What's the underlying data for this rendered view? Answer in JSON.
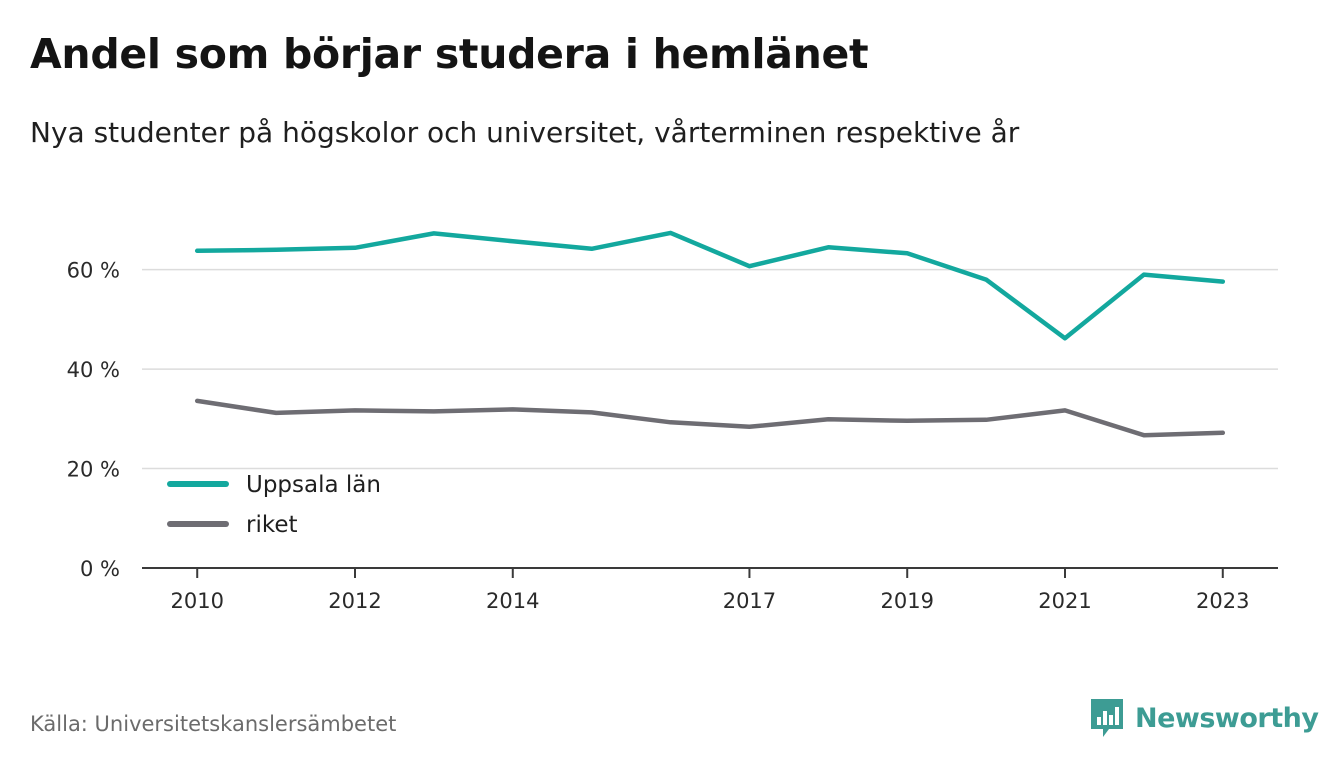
{
  "title": "Andel som börjar studera i hemlänet",
  "subtitle": "Nya studenter på högskolor och universitet, vårterminen respektive år",
  "source": "Källa: Universitetskanslersämbetet",
  "brand": {
    "name": "Newsworthy",
    "icon": "newsworthy-logo-icon",
    "color": "#3d9c94"
  },
  "chart_data": {
    "type": "line",
    "title": "Andel som börjar studera i hemlänet",
    "subtitle": "Nya studenter på högskolor och universitet, vårterminen respektive år",
    "x": [
      2010,
      2011,
      2012,
      2013,
      2014,
      2015,
      2016,
      2017,
      2018,
      2019,
      2020,
      2021,
      2022,
      2023
    ],
    "x_tick_labels": [
      "2010",
      "2012",
      "2014",
      "2017",
      "2019",
      "2021",
      "2023"
    ],
    "y_tick_labels": [
      "0 %",
      "20 %",
      "40 %",
      "60 %"
    ],
    "y_ticks": [
      0,
      20,
      40,
      60
    ],
    "ylim": [
      0,
      72
    ],
    "xlim": [
      2009.3,
      2023.7
    ],
    "grid": true,
    "legend_position": "bottom-left",
    "series": [
      {
        "name": "Uppsala län",
        "color": "#13a89e",
        "values": [
          63.8,
          64.0,
          64.4,
          67.3,
          65.7,
          64.2,
          67.4,
          60.7,
          64.5,
          63.3,
          58.0,
          46.2,
          59.0,
          57.6
        ]
      },
      {
        "name": "riket",
        "color": "#6e6d73",
        "values": [
          33.6,
          31.2,
          31.7,
          31.5,
          31.9,
          31.3,
          29.3,
          28.4,
          29.9,
          29.6,
          29.8,
          31.7,
          26.7,
          27.2
        ]
      }
    ]
  }
}
